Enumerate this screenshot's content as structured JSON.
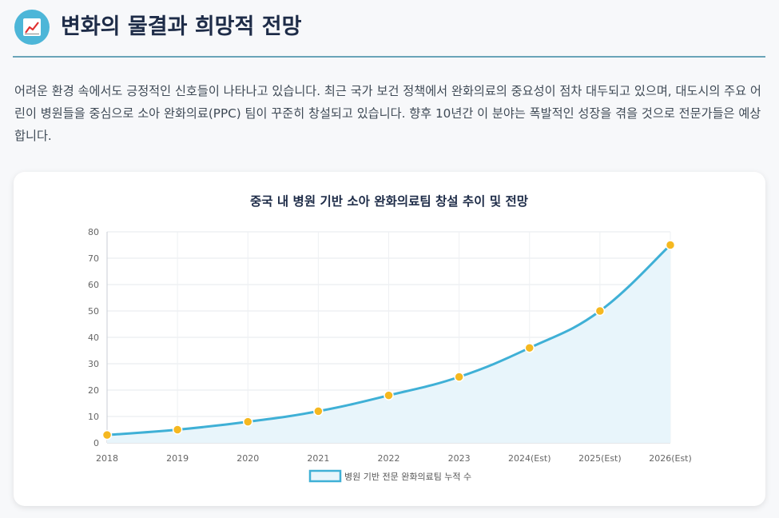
{
  "section": {
    "icon": "chart-increasing-icon",
    "title": "변화의 물결과 희망적 전망",
    "intro": "어려운 환경 속에서도 긍정적인 신호들이 나타나고 있습니다. 최근 국가 보건 정책에서 완화의료의 중요성이 점차 대두되고 있으며, 대도시의 주요 어린이 병원들을 중심으로 소아 완화의료(PPC) 팀이 꾸준히 창설되고 있습니다. 향후 10년간 이 분야는 폭발적인 성장을 겪을 것으로 전문가들은 예상합니다."
  },
  "colors": {
    "accent": "#4db6d8",
    "line": "#3fb0d6",
    "fill": "#e8f5fb",
    "point": "#f5b820",
    "title": "#1e2c48"
  },
  "chart_data": {
    "type": "area",
    "title": "중국 내 병원 기반 소아 완화의료팀 창설 추이 및 전망",
    "categories": [
      "2018",
      "2019",
      "2020",
      "2021",
      "2022",
      "2023",
      "2024(Est)",
      "2025(Est)",
      "2026(Est)"
    ],
    "series": [
      {
        "name": "병원 기반 전문 완화의료팀 누적 수",
        "values": [
          3,
          5,
          8,
          12,
          18,
          25,
          36,
          50,
          75
        ]
      }
    ],
    "ylim": [
      0,
      80
    ],
    "yticks": [
      0,
      10,
      20,
      30,
      40,
      50,
      60,
      70,
      80
    ],
    "grid": true,
    "legend": "bottom"
  }
}
